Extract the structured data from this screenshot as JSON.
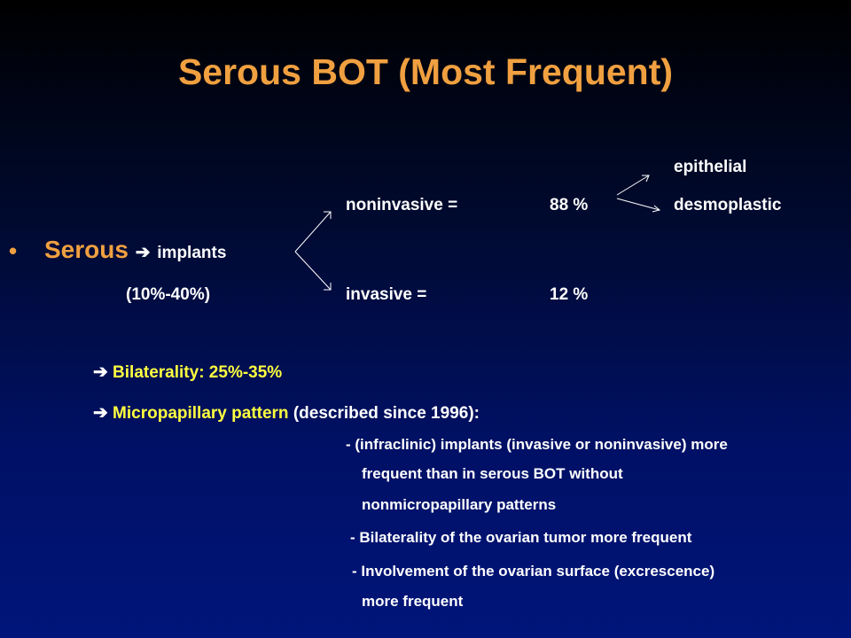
{
  "slide": {
    "title": "Serous BOT (Most Frequent)",
    "epithelial": "epithelial",
    "noninvasive_label": "noninvasive =",
    "noninvasive_value": "88 %",
    "desmoplastic": "desmoplastic",
    "bullet_symbol": "•",
    "serous_word": "Serous",
    "arrow_symbol": "➔",
    "implants": "implants",
    "range": "(10%-40%)",
    "invasive_label": "invasive =",
    "invasive_value": "12 %",
    "bilaterality": "Bilaterality: 25%-35%",
    "micropapillary_highlight": "Micropapillary pattern",
    "micropapillary_rest": "(described since 1996):",
    "detail_1_line_1": "- (infraclinic)  implants (invasive or noninvasive)  more",
    "detail_1_line_2": "frequent than in serous BOT without",
    "detail_1_line_3": "nonmicropapillary  patterns",
    "detail_2": "- Bilaterality  of the ovarian tumor more frequent",
    "detail_3_line_1": "- Involvement of the ovarian surface (excrescence)",
    "detail_3_line_2": "more  frequent"
  },
  "colors": {
    "title": "#f0a040",
    "highlight": "#ffff40",
    "text": "#ffffff"
  }
}
